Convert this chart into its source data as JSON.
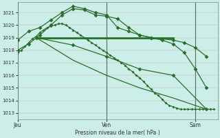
{
  "bg_color": "#cceee8",
  "grid_color": "#b0cccc",
  "line_color": "#2a6e2a",
  "title": "Pression niveau de la mer( hPa )",
  "ylim": [
    1012.5,
    1021.8
  ],
  "yticks": [
    1013,
    1014,
    1015,
    1016,
    1017,
    1018,
    1019,
    1020,
    1021
  ],
  "xlim": [
    0,
    54
  ],
  "day_ticks": [
    0,
    24,
    48
  ],
  "day_labels": [
    "Jeu",
    "Ven",
    "Sam"
  ],
  "series_dense": {
    "x": [
      0,
      1,
      2,
      3,
      4,
      5,
      6,
      7,
      8,
      9,
      10,
      11,
      12,
      13,
      14,
      15,
      16,
      17,
      18,
      19,
      20,
      21,
      22,
      23,
      24,
      25,
      26,
      27,
      28,
      29,
      30,
      31,
      32,
      33,
      34,
      35,
      36,
      37,
      38,
      39,
      40,
      41,
      42,
      43,
      44,
      45,
      46,
      47,
      48,
      49,
      50,
      51,
      52,
      53
    ],
    "y": [
      1017.8,
      1018.0,
      1018.3,
      1018.6,
      1018.9,
      1019.1,
      1019.4,
      1019.6,
      1019.8,
      1019.9,
      1020.0,
      1020.1,
      1020.1,
      1020.0,
      1019.8,
      1019.6,
      1019.4,
      1019.2,
      1019.0,
      1018.8,
      1018.6,
      1018.4,
      1018.2,
      1018.0,
      1017.8,
      1017.6,
      1017.4,
      1017.2,
      1017.0,
      1016.8,
      1016.5,
      1016.3,
      1016.0,
      1015.8,
      1015.5,
      1015.2,
      1014.9,
      1014.6,
      1014.4,
      1014.1,
      1013.8,
      1013.6,
      1013.5,
      1013.4,
      1013.3,
      1013.3,
      1013.3,
      1013.3,
      1013.3,
      1013.3,
      1013.3,
      1013.3,
      1013.3,
      1013.3
    ]
  },
  "series_A": {
    "x": [
      0,
      3,
      6,
      9,
      12,
      15,
      18,
      21,
      24,
      27,
      30,
      33,
      36,
      39,
      42,
      45,
      48,
      51
    ],
    "y": [
      1018.0,
      1018.5,
      1019.2,
      1020.0,
      1020.8,
      1021.3,
      1021.2,
      1020.8,
      1020.7,
      1020.5,
      1019.8,
      1019.2,
      1019.0,
      1018.8,
      1018.5,
      1017.8,
      1016.5,
      1015.0
    ]
  },
  "series_B": {
    "x": [
      0,
      3,
      6,
      9,
      12,
      15,
      18,
      21,
      24,
      27,
      30,
      33,
      36,
      39,
      42,
      45,
      48,
      51
    ],
    "y": [
      1018.8,
      1019.5,
      1019.8,
      1020.4,
      1021.0,
      1021.5,
      1021.3,
      1021.0,
      1020.8,
      1019.8,
      1019.5,
      1019.2,
      1019.0,
      1018.9,
      1018.8,
      1018.6,
      1018.2,
      1017.5
    ]
  },
  "series_flat": {
    "x": [
      5,
      42
    ],
    "y": [
      1019.0,
      1019.0
    ]
  },
  "series_C": {
    "x": [
      5,
      15,
      24,
      33,
      42,
      51
    ],
    "y": [
      1019.0,
      1018.4,
      1017.5,
      1016.5,
      1016.0,
      1013.3
    ]
  },
  "series_D": {
    "x": [
      5,
      15,
      24,
      33,
      42,
      51
    ],
    "y": [
      1019.0,
      1017.2,
      1016.0,
      1015.0,
      1014.2,
      1013.3
    ]
  }
}
